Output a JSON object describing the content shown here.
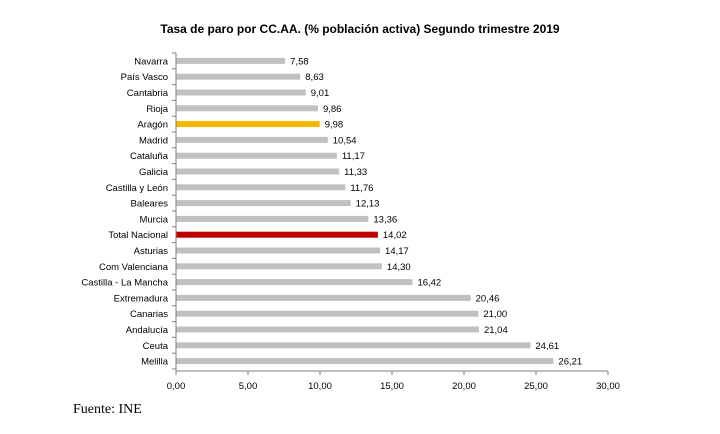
{
  "chart_data": {
    "type": "bar",
    "orientation": "horizontal",
    "title": "Tasa de paro por CC.AA.  (% población activa) Segundo trimestre  2019",
    "categories": [
      "Navarra",
      "País Vasco",
      "Cantabria",
      "Rioja",
      "Aragón",
      "Madrid",
      "Cataluña",
      "Galicia",
      "Castilla y León",
      "Baleares",
      "Murcia",
      "Total Nacional",
      "Asturias",
      "Com Valenciana",
      "Castilla - La Mancha",
      "Extremadura",
      "Canarias",
      "Andalucía",
      "Ceuta",
      "Melilla"
    ],
    "values": [
      7.58,
      8.63,
      9.01,
      9.86,
      9.98,
      10.54,
      11.17,
      11.33,
      11.76,
      12.13,
      13.36,
      14.02,
      14.17,
      14.3,
      16.42,
      20.46,
      21.0,
      21.04,
      24.61,
      26.21
    ],
    "value_labels": [
      "7,58",
      "8,63",
      "9,01",
      "9,86",
      "9,98",
      "10,54",
      "11,17",
      "11,33",
      "11,76",
      "12,13",
      "13,36",
      "14,02",
      "14,17",
      "14,30",
      "16,42",
      "20,46",
      "21,00",
      "21,04",
      "24,61",
      "26,21"
    ],
    "xlim": [
      0,
      30
    ],
    "xticks": [
      0,
      5,
      10,
      15,
      20,
      25,
      30
    ],
    "xtick_labels": [
      "0,00",
      "5,00",
      "10,00",
      "15,00",
      "20,00",
      "25,00",
      "30,00"
    ],
    "grid": false,
    "legend": "none",
    "colors": {
      "default": "#c0c0c0",
      "Aragón": "#f5b800",
      "Total Nacional": "#c00000",
      "axis": "#808080"
    }
  },
  "source": "Fuente: INE"
}
